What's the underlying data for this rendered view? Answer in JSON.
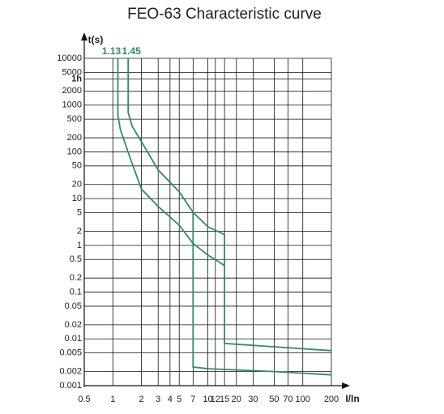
{
  "chart_data": {
    "type": "line",
    "title": "FEO-63  Characteristic curve",
    "x_label": "I/In",
    "y_label": "t(s)",
    "log_x": true,
    "log_y": true,
    "grid": true,
    "xlim": [
      0.5,
      200
    ],
    "ylim": [
      0.001,
      10000
    ],
    "xticks": [
      0.5,
      1,
      2,
      3,
      4,
      5,
      7,
      10,
      12,
      15,
      20,
      30,
      50,
      70,
      100,
      200
    ],
    "yticks": [
      10000,
      5000,
      {
        "value": 3600,
        "label": "1h"
      },
      2000,
      1000,
      500,
      200,
      100,
      50,
      20,
      10,
      5,
      2,
      1,
      0.5,
      0.2,
      0.1,
      0.05,
      0.02,
      0.01,
      0.005,
      0.002,
      0.001
    ],
    "series": [
      {
        "name": "1.13",
        "color": "#2e8b6e",
        "x": [
          1.13,
          1.13,
          1.2,
          1.5,
          2,
          3,
          5,
          7,
          10,
          15,
          null,
          7,
          7,
          10,
          50,
          200
        ],
        "values": [
          10000,
          600,
          300,
          80,
          16,
          6.8,
          2.7,
          1.1,
          0.62,
          0.37,
          null,
          5,
          0.0025,
          0.0023,
          0.002,
          0.0017
        ]
      },
      {
        "name": "1.45",
        "color": "#2e8b6e",
        "x": [
          1.45,
          1.45,
          1.6,
          2,
          3,
          5,
          7,
          10,
          15,
          15,
          200
        ],
        "values": [
          10000,
          700,
          350,
          165,
          41,
          14,
          5.1,
          2.5,
          1.7,
          0.008,
          0.0056
        ]
      }
    ]
  }
}
